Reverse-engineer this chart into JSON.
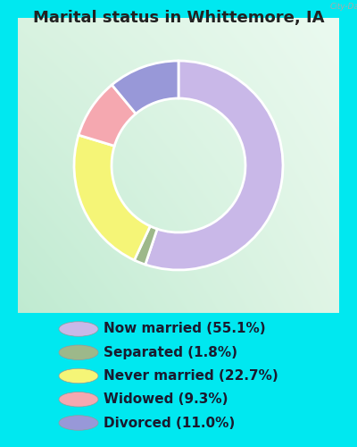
{
  "title": "Marital status in Whittemore, IA",
  "slices": [
    55.1,
    1.8,
    22.7,
    9.3,
    11.0
  ],
  "labels": [
    "Now married (55.1%)",
    "Separated (1.8%)",
    "Never married (22.7%)",
    "Widowed (9.3%)",
    "Divorced (11.0%)"
  ],
  "colors": [
    "#c9b8e8",
    "#9db88a",
    "#f5f577",
    "#f5a8b0",
    "#9898d8"
  ],
  "outer_background": "#00e8f0",
  "chart_bg_left": "#b8e8d0",
  "chart_bg_right": "#e8f5ee",
  "title_fontsize": 13,
  "startangle": 90,
  "legend_fontsize": 11
}
